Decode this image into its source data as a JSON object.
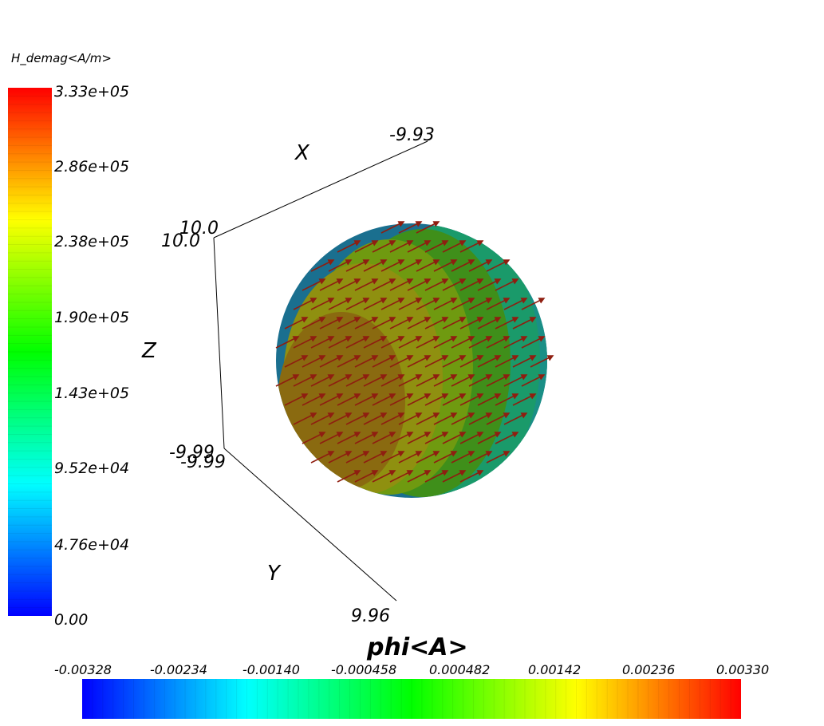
{
  "vertical_colorbar": {
    "title": "H_demag<A/m>",
    "ticks": [
      "3.33e+05",
      "2.86e+05",
      "2.38e+05",
      "1.90e+05",
      "1.43e+05",
      "9.52e+04",
      "4.76e+04",
      "0.00"
    ],
    "range": [
      0,
      333000
    ],
    "colors": [
      "#0000ff",
      "#00ffff",
      "#00ff00",
      "#ffff00",
      "#ff0000"
    ]
  },
  "horizontal_colorbar": {
    "title": "phi<A>",
    "ticks": [
      "-0.00328",
      "-0.00234",
      "-0.00140",
      "-0.000458",
      "0.000482",
      "0.00142",
      "0.00236",
      "0.00330"
    ],
    "range": [
      -0.00328,
      0.0033
    ],
    "colors": [
      "#0000ff",
      "#00ffff",
      "#00ff00",
      "#ffff00",
      "#ff0000"
    ]
  },
  "axes": {
    "x": {
      "name": "X",
      "end_label": "-9.93"
    },
    "y": {
      "name": "Y",
      "end_label": "9.96"
    },
    "z": {
      "name": "Z"
    },
    "origin_top_labels": [
      "10.0",
      "10.0"
    ],
    "origin_bottom_labels": [
      "-9.99",
      "-9.99"
    ]
  },
  "sphere": {
    "band_colors": [
      "#1a6f8f",
      "#1a8f86",
      "#1a9a6a",
      "#3f8f1a",
      "#6f9a10",
      "#8f9010",
      "#8a6a10"
    ],
    "arrow_color": "#8f1e10"
  }
}
